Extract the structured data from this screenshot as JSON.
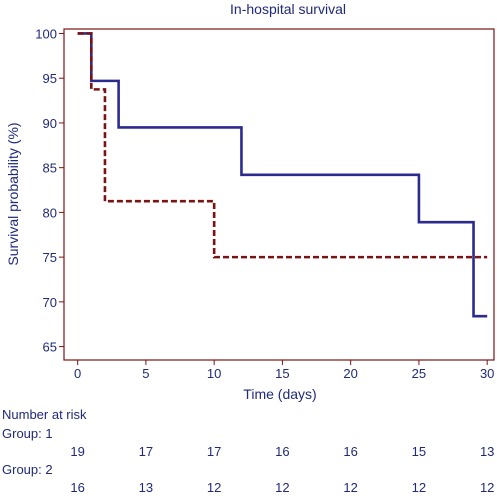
{
  "chart_data": {
    "type": "line",
    "title": "In-hospital survival",
    "xlabel": "Time (days)",
    "ylabel": "Survival probability (%)",
    "xlim": [
      -1,
      30.5
    ],
    "ylim": [
      63.5,
      100.5
    ],
    "x_ticks": [
      0,
      5,
      10,
      15,
      20,
      25,
      30
    ],
    "y_ticks": [
      65,
      70,
      75,
      80,
      85,
      90,
      95,
      100
    ],
    "grid": false,
    "series": [
      {
        "style": "solid",
        "color": "#2b2b8f",
        "steps": [
          [
            0,
            100
          ],
          [
            1,
            94.7
          ],
          [
            3,
            89.5
          ],
          [
            12,
            84.2
          ],
          [
            25,
            78.9
          ],
          [
            29,
            68.4
          ],
          [
            30,
            68.4
          ]
        ]
      },
      {
        "style": "dashed",
        "color": "#7a1414",
        "steps": [
          [
            0,
            100
          ],
          [
            1,
            93.75
          ],
          [
            2,
            81.25
          ],
          [
            10,
            75
          ],
          [
            30,
            75
          ]
        ]
      }
    ],
    "risk_table": {
      "heading": "Number at risk",
      "times": [
        0,
        5,
        10,
        15,
        20,
        25,
        30
      ],
      "groups": [
        {
          "label": "Group: 1",
          "values": [
            "19",
            "17",
            "17",
            "16",
            "16",
            "15",
            "13"
          ]
        },
        {
          "label": "Group: 2",
          "values": [
            "16",
            "13",
            "12",
            "12",
            "12",
            "12",
            "12"
          ]
        }
      ]
    }
  }
}
